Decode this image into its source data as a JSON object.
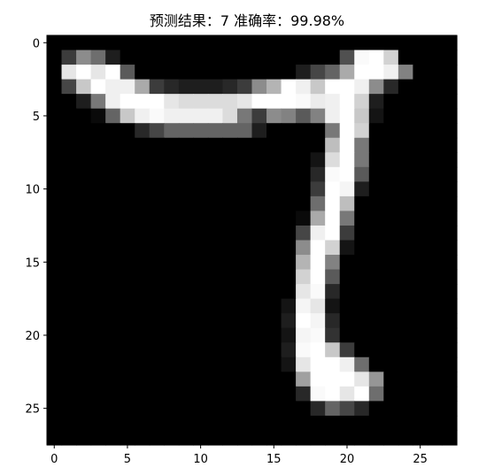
{
  "chart_data": {
    "type": "heatmap",
    "title": "预测结果：7 准确率：99.98%",
    "xlabel": "",
    "ylabel": "",
    "colormap": "gray",
    "grid": false,
    "xlim": [
      -0.5,
      27.5
    ],
    "ylim": [
      27.5,
      -0.5
    ],
    "xticks": [
      0,
      5,
      10,
      15,
      20,
      25
    ],
    "yticks": [
      0,
      5,
      10,
      15,
      20,
      25
    ],
    "xtick_labels": [
      "0",
      "5",
      "10",
      "15",
      "20",
      "25"
    ],
    "ytick_labels": [
      "0",
      "5",
      "10",
      "15",
      "20",
      "25"
    ],
    "value_range": [
      0,
      255
    ],
    "image": [
      [
        0,
        0,
        0,
        0,
        0,
        0,
        0,
        0,
        0,
        0,
        0,
        0,
        0,
        0,
        0,
        0,
        0,
        0,
        0,
        0,
        0,
        0,
        0,
        0,
        0,
        0,
        0,
        0
      ],
      [
        0,
        60,
        140,
        110,
        30,
        0,
        0,
        0,
        0,
        0,
        0,
        0,
        0,
        0,
        0,
        0,
        0,
        0,
        0,
        0,
        80,
        250,
        255,
        210,
        0,
        0,
        0,
        0
      ],
      [
        0,
        230,
        255,
        230,
        255,
        90,
        0,
        0,
        0,
        0,
        0,
        0,
        0,
        0,
        0,
        0,
        0,
        30,
        70,
        100,
        170,
        255,
        255,
        240,
        130,
        0,
        0,
        0
      ],
      [
        0,
        70,
        200,
        255,
        240,
        240,
        170,
        60,
        40,
        30,
        30,
        30,
        40,
        60,
        140,
        180,
        255,
        240,
        200,
        255,
        255,
        240,
        140,
        40,
        0,
        0,
        0,
        0
      ],
      [
        0,
        0,
        30,
        120,
        240,
        255,
        255,
        255,
        230,
        220,
        220,
        220,
        220,
        230,
        255,
        255,
        255,
        250,
        235,
        240,
        255,
        210,
        30,
        0,
        0,
        0,
        0,
        0
      ],
      [
        0,
        0,
        0,
        10,
        100,
        200,
        240,
        250,
        240,
        240,
        240,
        240,
        220,
        120,
        60,
        140,
        130,
        90,
        130,
        240,
        255,
        200,
        20,
        0,
        0,
        0,
        0,
        0
      ],
      [
        0,
        0,
        0,
        0,
        0,
        0,
        40,
        70,
        100,
        100,
        100,
        100,
        100,
        100,
        30,
        0,
        0,
        0,
        0,
        120,
        255,
        210,
        0,
        0,
        0,
        0,
        0,
        0
      ],
      [
        0,
        0,
        0,
        0,
        0,
        0,
        0,
        0,
        0,
        0,
        0,
        0,
        0,
        0,
        0,
        0,
        0,
        0,
        0,
        190,
        255,
        120,
        0,
        0,
        0,
        0,
        0,
        0
      ],
      [
        0,
        0,
        0,
        0,
        0,
        0,
        0,
        0,
        0,
        0,
        0,
        0,
        0,
        0,
        0,
        0,
        0,
        0,
        20,
        220,
        255,
        120,
        0,
        0,
        0,
        0,
        0,
        0
      ],
      [
        0,
        0,
        0,
        0,
        0,
        0,
        0,
        0,
        0,
        0,
        0,
        0,
        0,
        0,
        0,
        0,
        0,
        0,
        40,
        250,
        255,
        90,
        0,
        0,
        0,
        0,
        0,
        0
      ],
      [
        0,
        0,
        0,
        0,
        0,
        0,
        0,
        0,
        0,
        0,
        0,
        0,
        0,
        0,
        0,
        0,
        0,
        0,
        60,
        255,
        245,
        30,
        0,
        0,
        0,
        0,
        0,
        0
      ],
      [
        0,
        0,
        0,
        0,
        0,
        0,
        0,
        0,
        0,
        0,
        0,
        0,
        0,
        0,
        0,
        0,
        0,
        0,
        110,
        255,
        190,
        0,
        0,
        0,
        0,
        0,
        0,
        0
      ],
      [
        0,
        0,
        0,
        0,
        0,
        0,
        0,
        0,
        0,
        0,
        0,
        0,
        0,
        0,
        0,
        0,
        0,
        10,
        170,
        255,
        120,
        0,
        0,
        0,
        0,
        0,
        0,
        0
      ],
      [
        0,
        0,
        0,
        0,
        0,
        0,
        0,
        0,
        0,
        0,
        0,
        0,
        0,
        0,
        0,
        0,
        0,
        70,
        240,
        255,
        60,
        0,
        0,
        0,
        0,
        0,
        0,
        0
      ],
      [
        0,
        0,
        0,
        0,
        0,
        0,
        0,
        0,
        0,
        0,
        0,
        0,
        0,
        0,
        0,
        0,
        0,
        140,
        255,
        210,
        20,
        0,
        0,
        0,
        0,
        0,
        0,
        0
      ],
      [
        0,
        0,
        0,
        0,
        0,
        0,
        0,
        0,
        0,
        0,
        0,
        0,
        0,
        0,
        0,
        0,
        0,
        180,
        255,
        130,
        0,
        0,
        0,
        0,
        0,
        0,
        0,
        0
      ],
      [
        0,
        0,
        0,
        0,
        0,
        0,
        0,
        0,
        0,
        0,
        0,
        0,
        0,
        0,
        0,
        0,
        0,
        210,
        255,
        90,
        0,
        0,
        0,
        0,
        0,
        0,
        0,
        0
      ],
      [
        0,
        0,
        0,
        0,
        0,
        0,
        0,
        0,
        0,
        0,
        0,
        0,
        0,
        0,
        0,
        0,
        0,
        230,
        250,
        40,
        0,
        0,
        0,
        0,
        0,
        0,
        0,
        0
      ],
      [
        0,
        0,
        0,
        0,
        0,
        0,
        0,
        0,
        0,
        0,
        0,
        0,
        0,
        0,
        0,
        0,
        20,
        245,
        230,
        20,
        0,
        0,
        0,
        0,
        0,
        0,
        0,
        0
      ],
      [
        0,
        0,
        0,
        0,
        0,
        0,
        0,
        0,
        0,
        0,
        0,
        0,
        0,
        0,
        0,
        0,
        30,
        255,
        245,
        40,
        0,
        0,
        0,
        0,
        0,
        0,
        0,
        0
      ],
      [
        0,
        0,
        0,
        0,
        0,
        0,
        0,
        0,
        0,
        0,
        0,
        0,
        0,
        0,
        0,
        0,
        20,
        245,
        250,
        50,
        0,
        0,
        0,
        0,
        0,
        0,
        0,
        0
      ],
      [
        0,
        0,
        0,
        0,
        0,
        0,
        0,
        0,
        0,
        0,
        0,
        0,
        0,
        0,
        0,
        0,
        30,
        250,
        255,
        200,
        60,
        0,
        0,
        0,
        0,
        0,
        0,
        0
      ],
      [
        0,
        0,
        0,
        0,
        0,
        0,
        0,
        0,
        0,
        0,
        0,
        0,
        0,
        0,
        0,
        0,
        20,
        230,
        255,
        255,
        240,
        110,
        0,
        0,
        0,
        0,
        0,
        0
      ],
      [
        0,
        0,
        0,
        0,
        0,
        0,
        0,
        0,
        0,
        0,
        0,
        0,
        0,
        0,
        0,
        0,
        0,
        160,
        255,
        255,
        255,
        230,
        150,
        0,
        0,
        0,
        0,
        0
      ],
      [
        0,
        0,
        0,
        0,
        0,
        0,
        0,
        0,
        0,
        0,
        0,
        0,
        0,
        0,
        0,
        0,
        0,
        40,
        250,
        255,
        230,
        255,
        110,
        0,
        0,
        0,
        0,
        0
      ],
      [
        0,
        0,
        0,
        0,
        0,
        0,
        0,
        0,
        0,
        0,
        0,
        0,
        0,
        0,
        0,
        0,
        0,
        0,
        40,
        100,
        70,
        40,
        0,
        0,
        0,
        0,
        0,
        0
      ],
      [
        0,
        0,
        0,
        0,
        0,
        0,
        0,
        0,
        0,
        0,
        0,
        0,
        0,
        0,
        0,
        0,
        0,
        0,
        0,
        0,
        0,
        0,
        0,
        0,
        0,
        0,
        0,
        0
      ],
      [
        0,
        0,
        0,
        0,
        0,
        0,
        0,
        0,
        0,
        0,
        0,
        0,
        0,
        0,
        0,
        0,
        0,
        0,
        0,
        0,
        0,
        0,
        0,
        0,
        0,
        0,
        0,
        0
      ]
    ]
  }
}
